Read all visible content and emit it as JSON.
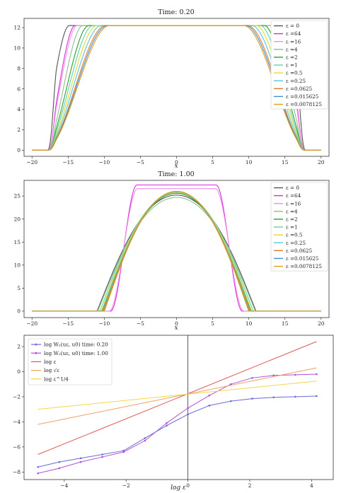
{
  "colors": {
    "eps_0": "#555555",
    "eps_64": "#d62fd6",
    "eps_16": "#f08cf0",
    "eps_4": "#8fbf8f",
    "eps_2": "#2ca02c",
    "eps_1": "#5fd3a6",
    "eps_0_5": "#e8d83a",
    "eps_0_25": "#52c8d8",
    "eps_0_0625": "#e07b2a",
    "eps_0_015625": "#3f8fd0",
    "eps_0_0078125": "#e39c1a",
    "w2_t020": "#6a6ad8",
    "w2_t100": "#b050d8",
    "log_eps": "#e05555",
    "log_sqrt": "#f0a060",
    "log_quarter": "#f2d64a",
    "axis": "#333333"
  },
  "legend_ab": [
    {
      "label": "ε = 0",
      "color_key": "eps_0"
    },
    {
      "label": "ε =64",
      "color_key": "eps_64"
    },
    {
      "label": "ε =16",
      "color_key": "eps_16"
    },
    {
      "label": "ε =4",
      "color_key": "eps_4"
    },
    {
      "label": "ε =2",
      "color_key": "eps_2"
    },
    {
      "label": "ε =1",
      "color_key": "eps_1"
    },
    {
      "label": "ε =0.5",
      "color_key": "eps_0_5"
    },
    {
      "label": "ε =0.25",
      "color_key": "eps_0_25"
    },
    {
      "label": "ε =0.0625",
      "color_key": "eps_0_0625"
    },
    {
      "label": "ε =0.015625",
      "color_key": "eps_0_015625"
    },
    {
      "label": "ε =0.0078125",
      "color_key": "eps_0_0078125"
    }
  ],
  "legend_c": [
    {
      "label": "log W₂(uε, u0) time: 0.20",
      "color_key": "w2_t020",
      "marker": true
    },
    {
      "label": "log W₂(uε, u0) time: 1.00",
      "color_key": "w2_t100",
      "marker": true
    },
    {
      "label": "log ε",
      "color_key": "log_eps",
      "marker": false
    },
    {
      "label": "log √ε",
      "color_key": "log_sqrt",
      "marker": false
    },
    {
      "label": "log ε^1/4",
      "color_key": "log_quarter",
      "marker": false
    }
  ],
  "chart_data": [
    {
      "type": "line",
      "title": "Time: 0.20",
      "xlabel": "x",
      "ylabel": "",
      "xlim": [
        -21.1,
        21.1
      ],
      "ylim": [
        -0.6,
        12.9
      ],
      "xticks": [
        -20,
        -15,
        -10,
        -5,
        0,
        5,
        10,
        15,
        20
      ],
      "yticks": [
        0,
        2,
        4,
        6,
        8,
        10,
        12
      ],
      "legend_position": "right",
      "profile": {
        "height": 12.2,
        "support_edge": 17.8
      },
      "series": [
        {
          "name": "ε = 0",
          "color_key": "eps_0",
          "shape": "plateau",
          "plateau_edge": 16.2,
          "shoulder": 1.6
        },
        {
          "name": "ε =64",
          "color_key": "eps_64",
          "shape": "plateau",
          "plateau_edge": 15.4,
          "shoulder": 1.6
        },
        {
          "name": "ε =16",
          "color_key": "eps_16",
          "shape": "plateau",
          "plateau_edge": 15.2,
          "shoulder": 1.7
        },
        {
          "name": "ε =4",
          "color_key": "eps_4",
          "shape": "plateau",
          "plateau_edge": 14.6,
          "shoulder": 1.9
        },
        {
          "name": "ε =2",
          "color_key": "eps_2",
          "shape": "plateau",
          "plateau_edge": 14.0,
          "shoulder": 2.2
        },
        {
          "name": "ε =1",
          "color_key": "eps_1",
          "shape": "plateau",
          "plateau_edge": 13.6,
          "shoulder": 2.4
        },
        {
          "name": "ε =0.5",
          "color_key": "eps_0_5",
          "shape": "plateau",
          "plateau_edge": 13.2,
          "shoulder": 2.6
        },
        {
          "name": "ε =0.25",
          "color_key": "eps_0_25",
          "shape": "plateau",
          "plateau_edge": 12.8,
          "shoulder": 2.8
        },
        {
          "name": "ε =0.0625",
          "color_key": "eps_0_0625",
          "shape": "plateau",
          "plateau_edge": 12.4,
          "shoulder": 3.0
        },
        {
          "name": "ε =0.015625",
          "color_key": "eps_0_015625",
          "shape": "plateau",
          "plateau_edge": 12.2,
          "shoulder": 3.1
        },
        {
          "name": "ε =0.0078125",
          "color_key": "eps_0_0078125",
          "shape": "plateau",
          "plateau_edge": 12.0,
          "shoulder": 3.2
        }
      ]
    },
    {
      "type": "line",
      "title": "Time: 1.00",
      "xlabel": "x",
      "ylabel": "",
      "xlim": [
        -21.1,
        21.1
      ],
      "ylim": [
        -1.4,
        28.4
      ],
      "xticks": [
        -20,
        -15,
        -10,
        -5,
        0,
        5,
        10,
        15,
        20
      ],
      "yticks": [
        0,
        5,
        10,
        15,
        20,
        25
      ],
      "legend_position": "right",
      "series": [
        {
          "name": "ε = 0",
          "color_key": "eps_0",
          "shape": "hump",
          "height": 25.2,
          "support": 11.0
        },
        {
          "name": "ε =64",
          "color_key": "eps_64",
          "shape": "plateau",
          "height": 27.4,
          "plateau_edge": 5.5,
          "support": 9.1
        },
        {
          "name": "ε =16",
          "color_key": "eps_16",
          "shape": "plateau",
          "height": 26.6,
          "plateau_edge": 5.4,
          "support": 9.3
        },
        {
          "name": "ε =4",
          "color_key": "eps_4",
          "shape": "hump",
          "height": 24.7,
          "support": 10.9
        },
        {
          "name": "ε =2",
          "color_key": "eps_2",
          "shape": "hump",
          "height": 25.6,
          "support": 10.3
        },
        {
          "name": "ε =1",
          "color_key": "eps_1",
          "shape": "hump",
          "height": 25.8,
          "support": 10.6
        },
        {
          "name": "ε =0.5",
          "color_key": "eps_0_5",
          "shape": "hump",
          "height": 25.9,
          "support": 10.4
        },
        {
          "name": "ε =0.25",
          "color_key": "eps_0_25",
          "shape": "hump",
          "height": 26.0,
          "support": 10.2
        },
        {
          "name": "ε =0.0625",
          "color_key": "eps_0_0625",
          "shape": "hump",
          "height": 26.0,
          "support": 10.1
        },
        {
          "name": "ε =0.015625",
          "color_key": "eps_0_015625",
          "shape": "hump",
          "height": 26.0,
          "support": 10.0
        },
        {
          "name": "ε =0.0078125",
          "color_key": "eps_0_0078125",
          "shape": "hump",
          "height": 26.0,
          "support": 10.0
        }
      ]
    },
    {
      "type": "line",
      "title": "",
      "xlabel": "log ε",
      "ylabel": "",
      "xlim": [
        -5.3,
        4.7
      ],
      "ylim": [
        -8.6,
        2.9
      ],
      "xticks": [
        -4,
        -2,
        0,
        2,
        4
      ],
      "yticks": [
        -8,
        -6,
        -4,
        -2,
        0,
        2
      ],
      "vline_x": 0,
      "legend_position": "upper left",
      "x": [
        -4.85,
        -4.16,
        -3.47,
        -2.77,
        -2.08,
        -1.39,
        -0.69,
        0.0,
        0.69,
        1.39,
        2.08,
        2.77,
        3.47,
        4.16
      ],
      "series": [
        {
          "name": "log W₂(uε, u0) time: 0.20",
          "color_key": "w2_t020",
          "marker": true,
          "values": [
            -7.6,
            -7.2,
            -6.9,
            -6.6,
            -6.3,
            -5.3,
            -4.3,
            -3.4,
            -2.7,
            -2.35,
            -2.15,
            -2.05,
            -2.0,
            -1.95
          ]
        },
        {
          "name": "log W₂(uε, u0) time: 1.00",
          "color_key": "w2_t100",
          "marker": true,
          "values": [
            -8.1,
            -7.7,
            -7.2,
            -6.8,
            -6.4,
            -5.5,
            -4.1,
            -2.9,
            -1.9,
            -1.0,
            -0.5,
            -0.3,
            -0.25,
            -0.2
          ]
        },
        {
          "name": "log ε",
          "color_key": "log_eps",
          "marker": false,
          "x": [
            -4.85,
            4.16
          ],
          "values": [
            -6.6,
            2.4
          ]
        },
        {
          "name": "log √ε",
          "color_key": "log_sqrt",
          "marker": false,
          "x": [
            -4.85,
            4.16
          ],
          "values": [
            -4.2,
            0.3
          ]
        },
        {
          "name": "log ε^1/4",
          "color_key": "log_quarter",
          "marker": false,
          "x": [
            -4.85,
            4.16
          ],
          "values": [
            -3.0,
            -0.75
          ]
        }
      ]
    }
  ]
}
